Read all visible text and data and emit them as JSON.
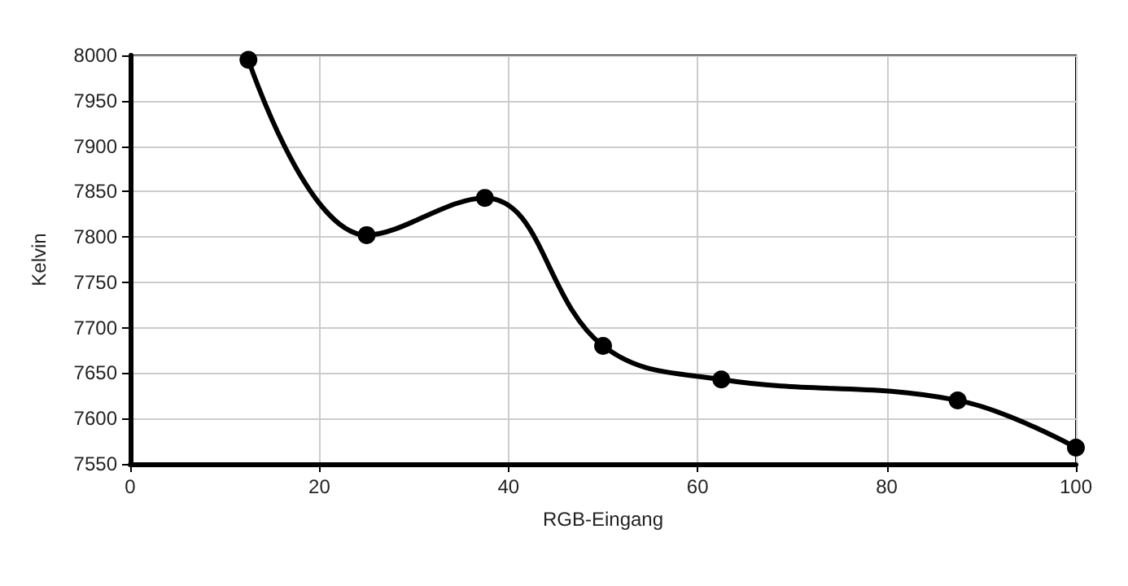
{
  "chart_data": {
    "type": "line",
    "xlabel": "RGB-Eingang",
    "ylabel": "Kelvin",
    "x": [
      12.5,
      25,
      37.5,
      50,
      62.5,
      75,
      87.5,
      100
    ],
    "series": [
      {
        "color": "#000000",
        "values": [
          7995,
          7802,
          7843,
          7680,
          7643,
          null,
          7620,
          7568
        ]
      }
    ],
    "xlim": [
      0,
      100
    ],
    "xticks": [
      0,
      20,
      40,
      60,
      80,
      100
    ],
    "ylim": [
      7550,
      8000
    ],
    "yticks": [
      7550,
      7600,
      7650,
      7700,
      7750,
      7800,
      7850,
      7900,
      7950,
      8000
    ],
    "grid": true,
    "marker": "circle",
    "line_style": "solid"
  }
}
